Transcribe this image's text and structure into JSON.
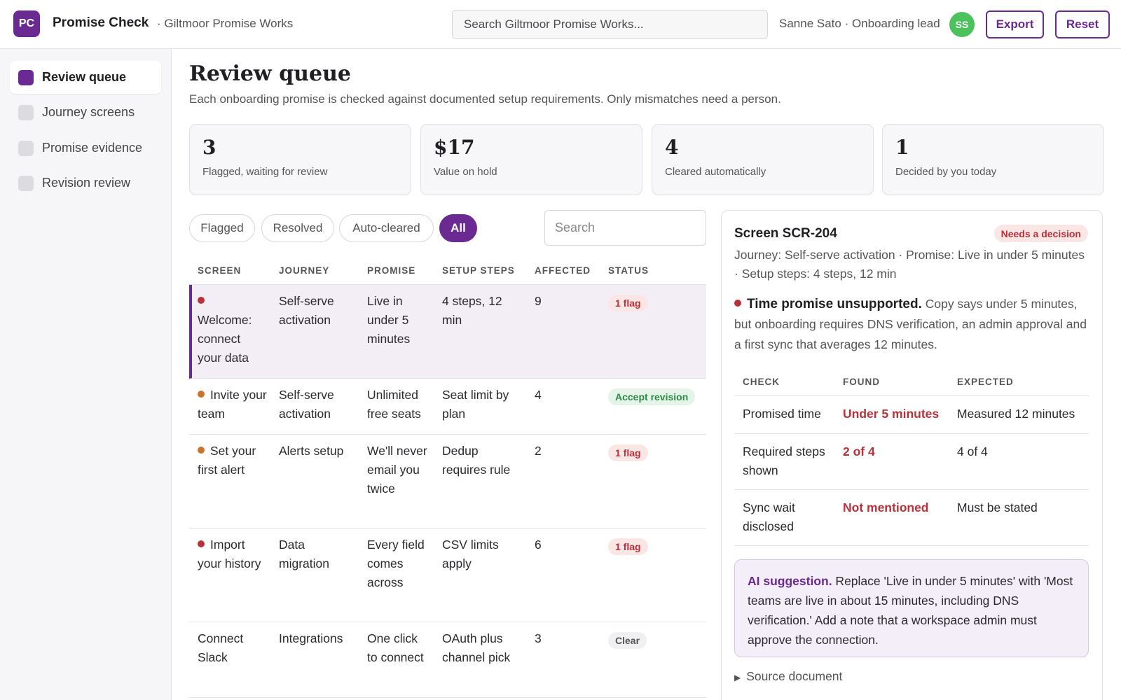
{
  "header": {
    "logo_text": "PC",
    "app_title": "Promise Check",
    "org": "· Giltmoor Promise Works",
    "search_placeholder": "Search Giltmoor Promise Works...",
    "user": "Sanne Sato · Onboarding lead",
    "avatar_initials": "SS",
    "export_label": "Export",
    "reset_label": "Reset"
  },
  "sidebar": {
    "items": [
      {
        "label": "Review queue",
        "active": true
      },
      {
        "label": "Journey screens",
        "active": false
      },
      {
        "label": "Promise evidence",
        "active": false
      },
      {
        "label": "Revision review",
        "active": false
      }
    ]
  },
  "main": {
    "title": "Review queue",
    "subtitle": "Each onboarding promise is checked against documented setup requirements. Only mismatches need a person.",
    "stats": [
      {
        "value": "3",
        "label": "Flagged, waiting for review"
      },
      {
        "value": "$17",
        "label": "Value on hold"
      },
      {
        "value": "4",
        "label": "Cleared automatically"
      },
      {
        "value": "1",
        "label": "Decided by you today"
      }
    ],
    "filters": [
      "Flagged",
      "Resolved",
      "Auto-cleared",
      "All"
    ],
    "active_filter": "All",
    "table_search_placeholder": "Search",
    "columns": [
      "SCREEN",
      "JOURNEY",
      "PROMISE",
      "SETUP STEPS",
      "AFFECTED",
      "STATUS"
    ],
    "rows": [
      {
        "dot": "#b8323a",
        "screen": "Welcome: connect your data",
        "journey": "Self-serve activation",
        "promise": "Live in under 5 minutes",
        "steps": "4 steps, 12 min",
        "affected": "9",
        "status": "1 flag",
        "status_type": "flag"
      },
      {
        "dot": "#c8742a",
        "screen": "Invite your team",
        "journey": "Self-serve activation",
        "promise": "Unlimited free seats",
        "steps": "Seat limit by plan",
        "affected": "4",
        "status": "Accept revision",
        "status_type": "accept"
      },
      {
        "dot": "#c8742a",
        "screen": "Set your first alert",
        "journey": "Alerts setup",
        "promise": "We'll never email you twice",
        "steps": "Dedup requires rule",
        "affected": "2",
        "status": "1 flag",
        "status_type": "flag"
      },
      {
        "dot": "#b8323a",
        "screen": "Import your history",
        "journey": "Data migration",
        "promise": "Every field comes across",
        "steps": "CSV limits apply",
        "affected": "6",
        "status": "1 flag",
        "status_type": "flag"
      },
      {
        "dot": "",
        "screen": "Connect Slack",
        "journey": "Integrations",
        "promise": "One click to connect",
        "steps": "OAuth plus channel pick",
        "affected": "3",
        "status": "Clear",
        "status_type": "clear"
      }
    ]
  },
  "detail": {
    "title": "Screen SCR-204",
    "badge": "Needs a decision",
    "meta": "Journey: Self-serve activation · Promise: Live in under 5 minutes · Setup steps: 4 steps, 12 min",
    "finding_title": "Time promise unsupported.",
    "finding_text": " Copy says under 5 minutes, but onboarding requires DNS verification, an admin approval and a first sync that averages 12 minutes.",
    "columns": [
      "CHECK",
      "FOUND",
      "EXPECTED"
    ],
    "checks": [
      {
        "check": "Promised time",
        "found": "Under 5 minutes",
        "expected": "Measured 12 minutes"
      },
      {
        "check": "Required steps shown",
        "found": "2 of 4",
        "expected": "4 of 4"
      },
      {
        "check": "Sync wait disclosed",
        "found": "Not mentioned",
        "expected": "Must be stated"
      }
    ],
    "ai_label": "AI suggestion.",
    "ai_text": " Replace 'Live in under 5 minutes' with 'Most teams are live in about 15 minutes, including DNS verification.' Add a note that a workspace admin must approve the connection.",
    "source_label": "Source document"
  },
  "colors": {
    "accent": "#6b2a91",
    "flag": "#b8323a",
    "success": "#2c8a45",
    "avatar": "#4cc25d"
  }
}
